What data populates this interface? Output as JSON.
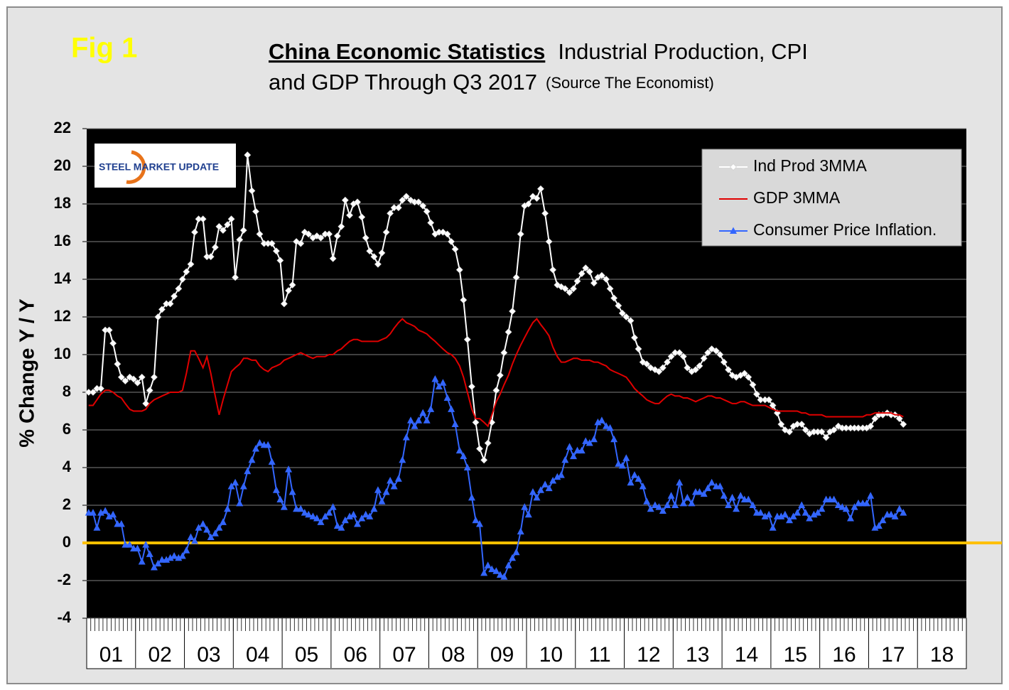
{
  "chart_data": {
    "type": "line",
    "fig_label": "Fig 1",
    "title": "China Economic Statistics",
    "subtitle_1": "Industrial Production, CPI",
    "subtitle_2": "and GDP Through Q3 2017",
    "source": "(Source The Economist)",
    "logo_text": "STEEL MARKET UPDATE",
    "y_label": "% Change Y / Y",
    "ylim": [
      -4,
      22
    ],
    "yticks": [
      -4,
      -2,
      0,
      2,
      4,
      6,
      8,
      10,
      12,
      14,
      16,
      18,
      20,
      22
    ],
    "xlim": [
      1,
      19
    ],
    "xticks": [
      {
        "value": 1.5,
        "label": "01"
      },
      {
        "value": 2.5,
        "label": "02"
      },
      {
        "value": 3.5,
        "label": "03"
      },
      {
        "value": 4.5,
        "label": "04"
      },
      {
        "value": 5.5,
        "label": "05"
      },
      {
        "value": 6.5,
        "label": "06"
      },
      {
        "value": 7.5,
        "label": "07"
      },
      {
        "value": 8.5,
        "label": "08"
      },
      {
        "value": 9.5,
        "label": "09"
      },
      {
        "value": 10.5,
        "label": "10"
      },
      {
        "value": 11.5,
        "label": "11"
      },
      {
        "value": 12.5,
        "label": "12"
      },
      {
        "value": 13.5,
        "label": "13"
      },
      {
        "value": 14.5,
        "label": "14"
      },
      {
        "value": 15.5,
        "label": "15"
      },
      {
        "value": 16.5,
        "label": "16"
      },
      {
        "value": 17.5,
        "label": "17"
      },
      {
        "value": 18.5,
        "label": "18"
      }
    ],
    "grid": true,
    "legend": "upper-right",
    "reference_line": {
      "value": 0,
      "color": "#ffc000"
    },
    "x": [
      1.04,
      1.13,
      1.21,
      1.29,
      1.38,
      1.46,
      1.54,
      1.63,
      1.71,
      1.79,
      1.88,
      1.96,
      2.04,
      2.13,
      2.21,
      2.29,
      2.38,
      2.46,
      2.54,
      2.63,
      2.71,
      2.79,
      2.88,
      2.96,
      3.04,
      3.13,
      3.21,
      3.29,
      3.38,
      3.46,
      3.54,
      3.63,
      3.71,
      3.79,
      3.88,
      3.96,
      4.04,
      4.13,
      4.21,
      4.29,
      4.38,
      4.46,
      4.54,
      4.63,
      4.71,
      4.79,
      4.88,
      4.96,
      5.04,
      5.13,
      5.21,
      5.29,
      5.38,
      5.46,
      5.54,
      5.63,
      5.71,
      5.79,
      5.88,
      5.96,
      6.04,
      6.13,
      6.21,
      6.29,
      6.38,
      6.46,
      6.54,
      6.63,
      6.71,
      6.79,
      6.88,
      6.96,
      7.04,
      7.13,
      7.21,
      7.29,
      7.38,
      7.46,
      7.54,
      7.63,
      7.71,
      7.79,
      7.88,
      7.96,
      8.04,
      8.13,
      8.21,
      8.29,
      8.38,
      8.46,
      8.54,
      8.63,
      8.71,
      8.79,
      8.88,
      8.96,
      9.04,
      9.13,
      9.21,
      9.29,
      9.38,
      9.46,
      9.54,
      9.63,
      9.71,
      9.79,
      9.88,
      9.96,
      10.04,
      10.13,
      10.21,
      10.29,
      10.38,
      10.46,
      10.54,
      10.63,
      10.71,
      10.79,
      10.88,
      10.96,
      11.04,
      11.13,
      11.21,
      11.29,
      11.38,
      11.46,
      11.54,
      11.63,
      11.71,
      11.79,
      11.88,
      11.96,
      12.04,
      12.13,
      12.21,
      12.29,
      12.38,
      12.46,
      12.54,
      12.63,
      12.71,
      12.79,
      12.88,
      12.96,
      13.04,
      13.13,
      13.21,
      13.29,
      13.38,
      13.46,
      13.54,
      13.63,
      13.71,
      13.79,
      13.88,
      13.96,
      14.04,
      14.13,
      14.21,
      14.29,
      14.38,
      14.46,
      14.54,
      14.63,
      14.71,
      14.79,
      14.88,
      14.96,
      15.04,
      15.13,
      15.21,
      15.29,
      15.38,
      15.46,
      15.54,
      15.63,
      15.71,
      15.79,
      15.88,
      15.96,
      16.04,
      16.13,
      16.21,
      16.29,
      16.38,
      16.46,
      16.54,
      16.63,
      16.71,
      16.79,
      16.88,
      16.96,
      17.04,
      17.13,
      17.21,
      17.29,
      17.38,
      17.46,
      17.54,
      17.63,
      17.71
    ],
    "series": [
      {
        "name": "Ind Prod 3MMA",
        "color": "#ffffff",
        "marker": "diamond",
        "values": [
          8.0,
          8.0,
          8.2,
          8.2,
          11.3,
          11.3,
          10.6,
          9.5,
          8.8,
          8.6,
          8.8,
          8.7,
          8.5,
          8.8,
          7.4,
          8.1,
          8.8,
          12.0,
          12.4,
          12.7,
          12.7,
          13.1,
          13.5,
          14.0,
          14.4,
          14.8,
          16.5,
          17.2,
          17.2,
          15.2,
          15.2,
          15.7,
          16.8,
          16.6,
          16.9,
          17.2,
          14.1,
          16.1,
          16.6,
          20.6,
          18.7,
          17.6,
          16.4,
          15.9,
          15.9,
          15.9,
          15.5,
          15.0,
          12.7,
          13.4,
          13.7,
          16.0,
          15.9,
          16.5,
          16.4,
          16.2,
          16.3,
          16.2,
          16.4,
          16.4,
          15.1,
          16.3,
          16.8,
          18.2,
          17.4,
          18.0,
          18.1,
          17.3,
          16.2,
          15.5,
          15.2,
          14.8,
          15.4,
          16.5,
          17.5,
          17.8,
          17.8,
          18.2,
          18.4,
          18.2,
          18.1,
          18.1,
          17.9,
          17.6,
          17.0,
          16.4,
          16.5,
          16.5,
          16.4,
          16.0,
          15.6,
          14.5,
          12.9,
          10.8,
          8.3,
          6.4,
          5.0,
          4.4,
          5.3,
          6.4,
          8.1,
          8.9,
          10.1,
          11.2,
          12.3,
          14.1,
          16.4,
          17.9,
          18.0,
          18.4,
          18.3,
          18.8,
          17.5,
          16.0,
          14.5,
          13.7,
          13.6,
          13.5,
          13.3,
          13.5,
          13.9,
          14.3,
          14.6,
          14.4,
          13.8,
          14.1,
          14.2,
          14.0,
          13.5,
          13.0,
          12.6,
          12.2,
          12.0,
          11.8,
          10.9,
          10.3,
          9.6,
          9.5,
          9.3,
          9.2,
          9.1,
          9.3,
          9.6,
          9.9,
          10.1,
          10.1,
          9.9,
          9.3,
          9.1,
          9.2,
          9.4,
          9.8,
          10.1,
          10.3,
          10.2,
          10.0,
          9.6,
          9.2,
          8.9,
          8.8,
          8.9,
          9.0,
          8.8,
          8.4,
          7.9,
          7.6,
          7.6,
          7.6,
          7.3,
          6.9,
          6.3,
          6.0,
          5.9,
          6.2,
          6.3,
          6.3,
          6.0,
          5.8,
          5.9,
          5.9,
          5.9,
          5.6,
          5.9,
          6.0,
          6.2,
          6.1,
          6.1,
          6.1,
          6.1,
          6.1,
          6.1,
          6.1,
          6.2,
          6.6,
          6.8,
          6.8,
          6.9,
          6.8,
          6.8,
          6.6,
          6.3
        ]
      },
      {
        "name": "GDP 3MMA",
        "color": "#e00000",
        "marker": "none",
        "values": [
          7.3,
          7.3,
          7.6,
          7.9,
          8.1,
          8.1,
          8.0,
          7.8,
          7.7,
          7.4,
          7.1,
          7.0,
          7.0,
          7.0,
          7.1,
          7.4,
          7.6,
          7.7,
          7.8,
          7.9,
          8.0,
          8.0,
          8.0,
          8.1,
          9.0,
          10.2,
          10.2,
          9.8,
          9.3,
          9.9,
          9.0,
          7.8,
          6.8,
          7.6,
          8.4,
          9.1,
          9.3,
          9.5,
          9.8,
          9.8,
          9.7,
          9.7,
          9.4,
          9.2,
          9.1,
          9.3,
          9.4,
          9.5,
          9.7,
          9.8,
          9.9,
          10.0,
          10.1,
          10.0,
          9.9,
          9.8,
          9.9,
          9.9,
          9.9,
          10.0,
          10.0,
          10.2,
          10.3,
          10.5,
          10.7,
          10.8,
          10.8,
          10.7,
          10.7,
          10.7,
          10.7,
          10.7,
          10.8,
          10.9,
          11.1,
          11.4,
          11.7,
          11.9,
          11.7,
          11.6,
          11.5,
          11.3,
          11.2,
          11.1,
          10.9,
          10.7,
          10.5,
          10.3,
          10.1,
          10.0,
          9.8,
          9.4,
          8.8,
          8.0,
          7.1,
          6.6,
          6.6,
          6.4,
          6.2,
          6.8,
          7.5,
          7.9,
          8.4,
          8.9,
          9.5,
          10.0,
          10.5,
          10.9,
          11.3,
          11.7,
          11.9,
          11.6,
          11.3,
          11.0,
          10.4,
          9.9,
          9.6,
          9.6,
          9.7,
          9.8,
          9.8,
          9.7,
          9.7,
          9.7,
          9.6,
          9.6,
          9.5,
          9.4,
          9.2,
          9.1,
          9.0,
          8.9,
          8.8,
          8.5,
          8.2,
          8.0,
          7.8,
          7.6,
          7.5,
          7.4,
          7.4,
          7.6,
          7.8,
          7.9,
          7.8,
          7.8,
          7.7,
          7.7,
          7.6,
          7.5,
          7.6,
          7.7,
          7.8,
          7.8,
          7.7,
          7.7,
          7.6,
          7.5,
          7.4,
          7.4,
          7.5,
          7.5,
          7.4,
          7.3,
          7.3,
          7.3,
          7.3,
          7.2,
          7.1,
          7.0,
          7.0,
          7.0,
          7.0,
          7.0,
          7.0,
          6.9,
          6.9,
          6.8,
          6.8,
          6.8,
          6.8,
          6.7,
          6.7,
          6.7,
          6.7,
          6.7,
          6.7,
          6.7,
          6.7,
          6.7,
          6.7,
          6.8,
          6.8,
          6.9,
          6.9,
          6.9,
          6.9,
          6.9,
          6.8,
          6.8,
          6.7
        ]
      },
      {
        "name": "Consumer Price Inflation.",
        "color": "#3366ff",
        "marker": "triangle",
        "values": [
          1.6,
          1.6,
          0.8,
          1.6,
          1.7,
          1.4,
          1.5,
          1.0,
          1.0,
          -0.1,
          -0.1,
          -0.3,
          -0.3,
          -1.0,
          -0.1,
          -0.6,
          -1.3,
          -1.1,
          -0.9,
          -0.9,
          -0.8,
          -0.7,
          -0.8,
          -0.7,
          -0.4,
          0.3,
          0.1,
          0.8,
          1.0,
          0.7,
          0.3,
          0.5,
          0.8,
          1.1,
          1.8,
          3.0,
          3.2,
          2.1,
          3.0,
          3.8,
          4.4,
          5.0,
          5.3,
          5.2,
          5.2,
          4.3,
          2.8,
          2.3,
          1.9,
          3.9,
          2.7,
          1.8,
          1.8,
          1.6,
          1.5,
          1.4,
          1.3,
          1.1,
          1.4,
          1.6,
          1.9,
          0.9,
          0.8,
          1.2,
          1.4,
          1.5,
          1.0,
          1.3,
          1.5,
          1.4,
          1.8,
          2.8,
          2.2,
          2.7,
          3.3,
          3.0,
          3.4,
          4.4,
          5.6,
          6.5,
          6.2,
          6.5,
          6.9,
          6.5,
          7.1,
          8.7,
          8.3,
          8.5,
          7.7,
          7.1,
          6.3,
          4.9,
          4.6,
          4.0,
          2.4,
          1.2,
          1.0,
          -1.6,
          -1.2,
          -1.4,
          -1.5,
          -1.7,
          -1.8,
          -1.2,
          -0.8,
          -0.5,
          0.6,
          1.9,
          1.5,
          2.7,
          2.4,
          2.8,
          3.1,
          2.9,
          3.3,
          3.5,
          3.6,
          4.4,
          5.1,
          4.6,
          4.9,
          4.9,
          5.4,
          5.3,
          5.5,
          6.4,
          6.5,
          6.2,
          6.1,
          5.5,
          4.2,
          4.1,
          4.5,
          3.2,
          3.6,
          3.4,
          3.0,
          2.2,
          1.8,
          2.0,
          1.9,
          1.7,
          2.0,
          2.5,
          2.0,
          3.2,
          2.1,
          2.4,
          2.1,
          2.7,
          2.7,
          2.6,
          2.9,
          3.2,
          3.0,
          3.0,
          2.5,
          2.0,
          2.4,
          1.8,
          2.5,
          2.3,
          2.3,
          2.0,
          1.6,
          1.6,
          1.4,
          1.5,
          0.8,
          1.4,
          1.4,
          1.5,
          1.2,
          1.4,
          1.6,
          2.0,
          1.6,
          1.3,
          1.5,
          1.6,
          1.8,
          2.3,
          2.3,
          2.3,
          2.0,
          1.9,
          1.8,
          1.3,
          1.9,
          2.1,
          2.1,
          2.1,
          2.5,
          0.8,
          0.9,
          1.2,
          1.5,
          1.5,
          1.4,
          1.8,
          1.6
        ]
      }
    ]
  }
}
